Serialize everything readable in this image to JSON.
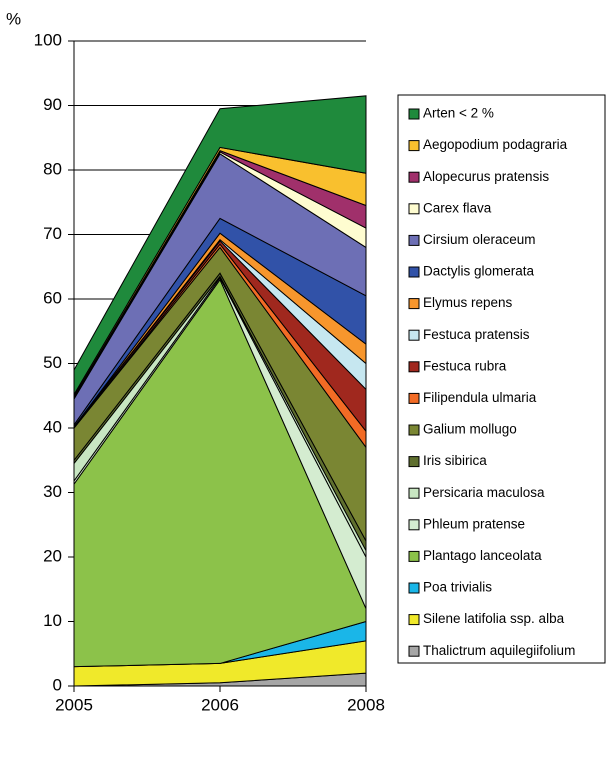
{
  "chart_data": {
    "type": "stacked_area",
    "ylabel": "%",
    "categories": [
      "2005",
      "2006",
      "2008"
    ],
    "ylim": [
      0,
      100
    ],
    "yticks": [
      0,
      10,
      20,
      30,
      40,
      50,
      60,
      70,
      80,
      90,
      100
    ],
    "grid": true,
    "legend": "right",
    "series": [
      {
        "name": "Arten < 2 %",
        "color": "#1f8a3c",
        "values": [
          3.8,
          6,
          12
        ]
      },
      {
        "name": "Aegopodium podagraria",
        "color": "#f9c02e",
        "values": [
          0.3,
          0.5,
          5
        ]
      },
      {
        "name": "Alopecurus pratensis",
        "color": "#a0306b",
        "values": [
          0.2,
          0.2,
          3.5
        ]
      },
      {
        "name": "Carex flava",
        "color": "#fefcd0",
        "values": [
          0.2,
          0.3,
          3
        ]
      },
      {
        "name": "Cirsium oleraceum",
        "color": "#6d6fb5",
        "values": [
          4,
          10,
          7.5
        ]
      },
      {
        "name": "Dactylis glomerata",
        "color": "#3152a8",
        "values": [
          0.3,
          2.3,
          7.5
        ]
      },
      {
        "name": "Elymus repens",
        "color": "#f7962d",
        "values": [
          0,
          1,
          3
        ]
      },
      {
        "name": "Festuca pratensis",
        "color": "#c6e7f0",
        "values": [
          0,
          0.2,
          4
        ]
      },
      {
        "name": "Festuca rubra",
        "color": "#a0281e",
        "values": [
          0.2,
          0.5,
          6.5
        ]
      },
      {
        "name": "Filipendula ulmaria",
        "color": "#f26b25",
        "values": [
          0,
          0.5,
          2.5
        ]
      },
      {
        "name": "Galium mollugo",
        "color": "#7a8633",
        "values": [
          5,
          4,
          14.5
        ]
      },
      {
        "name": "Iris sibirica",
        "color": "#5f6f2e",
        "values": [
          0.5,
          0.5,
          1.5
        ]
      },
      {
        "name": "Persicaria maculosa",
        "color": "#c8e6c2",
        "values": [
          2.7,
          0.2,
          1
        ]
      },
      {
        "name": "Phleum pratense",
        "color": "#d4ecd0",
        "values": [
          0.5,
          0.3,
          8
        ]
      },
      {
        "name": "Plantago lanceolata",
        "color": "#8cc24a",
        "values": [
          28.3,
          59.5,
          2
        ]
      },
      {
        "name": "Poa trivialis",
        "color": "#1ab6e8",
        "values": [
          0,
          0,
          3
        ]
      },
      {
        "name": "Silene latifolia ssp. alba",
        "color": "#f0e92a",
        "values": [
          3,
          3,
          5
        ]
      },
      {
        "name": "Thalictrum aquilegiifolium",
        "color": "#a6a6a6",
        "values": [
          0,
          0.5,
          2
        ]
      }
    ]
  }
}
